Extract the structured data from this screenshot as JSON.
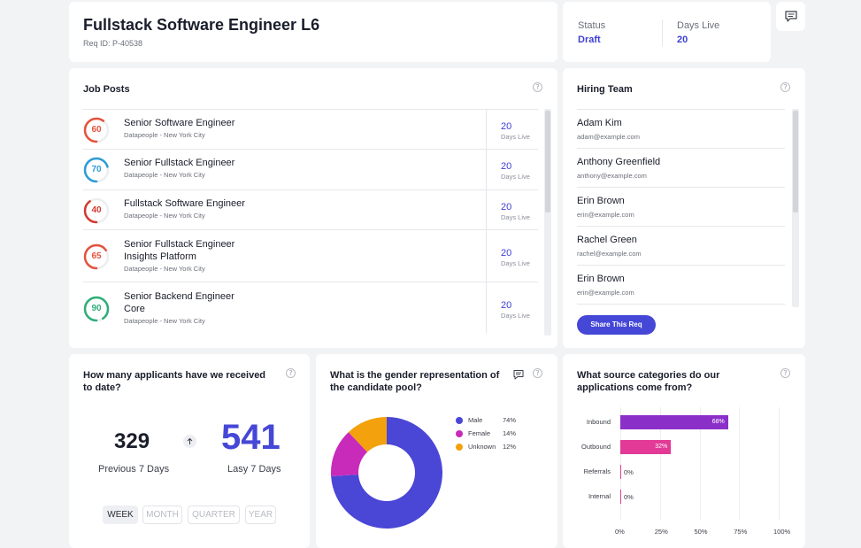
{
  "header": {
    "title": "Fullstack Software Engineer L6",
    "req_id": "Req ID: P-40538",
    "status_label": "Status",
    "status_value": "Draft",
    "days_live_label": "Days Live",
    "days_live_value": "20",
    "comment_icon": "comment-icon"
  },
  "job_posts": {
    "title": "Job Posts",
    "help_icon": "help-icon",
    "items": [
      {
        "score": "60",
        "score_pct": 60,
        "color": "#e5533d",
        "name_lines": [
          "Senior Software Engineer"
        ],
        "location": "Datapeople - New York City",
        "days": "20",
        "days_label": "Days Live"
      },
      {
        "score": "70",
        "score_pct": 70,
        "color": "#2f9bd6",
        "name_lines": [
          "Senior Fullstack Engineer"
        ],
        "location": "Datapeople - New York City",
        "days": "20",
        "days_label": "Days Live"
      },
      {
        "score": "40",
        "score_pct": 40,
        "color": "#d23a2f",
        "name_lines": [
          "Fullstack Software Engineer"
        ],
        "location": "Datapeople - New York City",
        "days": "20",
        "days_label": "Days Live"
      },
      {
        "score": "65",
        "score_pct": 65,
        "color": "#e5533d",
        "name_lines": [
          "Senior Fullstack Engineer",
          "Insights Platform"
        ],
        "location": "Datapeople - New York City",
        "days": "20",
        "days_label": "Days Live"
      },
      {
        "score": "90",
        "score_pct": 90,
        "color": "#2fae79",
        "name_lines": [
          "Senior Backend Engineer",
          "Core"
        ],
        "location": "Datapeople - New York City",
        "days": "20",
        "days_label": "Days Live"
      }
    ]
  },
  "hiring_team": {
    "title": "Hiring Team",
    "members": [
      {
        "name": "Adam Kim",
        "email": "adam@example.com"
      },
      {
        "name": "Anthony Greenfield",
        "email": "anthony@example.com"
      },
      {
        "name": "Erin Brown",
        "email": "erin@example.com"
      },
      {
        "name": "Rachel Green",
        "email": "rachel@example.com"
      },
      {
        "name": "Erin Brown",
        "email": "erin@example.com"
      }
    ],
    "share_button": "Share This Req"
  },
  "applicants": {
    "question": "How many applicants have we received to date?",
    "previous_value": "329",
    "previous_label": "Previous 7 Days",
    "latest_value": "541",
    "latest_label": "Lasy 7 Days",
    "arrow_icon": "arrow-up-icon",
    "ranges": [
      "WEEK",
      "MONTH",
      "QUARTER",
      "YEAR"
    ],
    "active_range": "WEEK"
  },
  "gender": {
    "question": "What is the gender representation of the candidate pool?",
    "chart_icon": "chart-comment-icon",
    "chart_data": {
      "type": "pie",
      "categories": [
        "Male",
        "Female",
        "Unknown"
      ],
      "values": [
        74,
        14,
        12
      ],
      "labels": [
        "74%",
        "14%",
        "12%"
      ],
      "colors": [
        "#4a46d6",
        "#c82aba",
        "#f3a10c"
      ],
      "legend": "right"
    }
  },
  "source": {
    "question": "What source categories do our applications come from?",
    "chart_data": {
      "type": "bar",
      "orientation": "horizontal",
      "categories": [
        "Inbound",
        "Outbound",
        "Referrals",
        "Internal"
      ],
      "values": [
        68,
        32,
        0,
        0
      ],
      "labels": [
        "68%",
        "32%",
        "0%",
        "0%"
      ],
      "colors": [
        "#8b2fc9",
        "#e23a96",
        "#e23a96",
        "#e23a96"
      ],
      "xlim": [
        0,
        100
      ],
      "xticks": [
        "0%",
        "25%",
        "50%",
        "75%",
        "100%"
      ],
      "grid": true
    }
  }
}
